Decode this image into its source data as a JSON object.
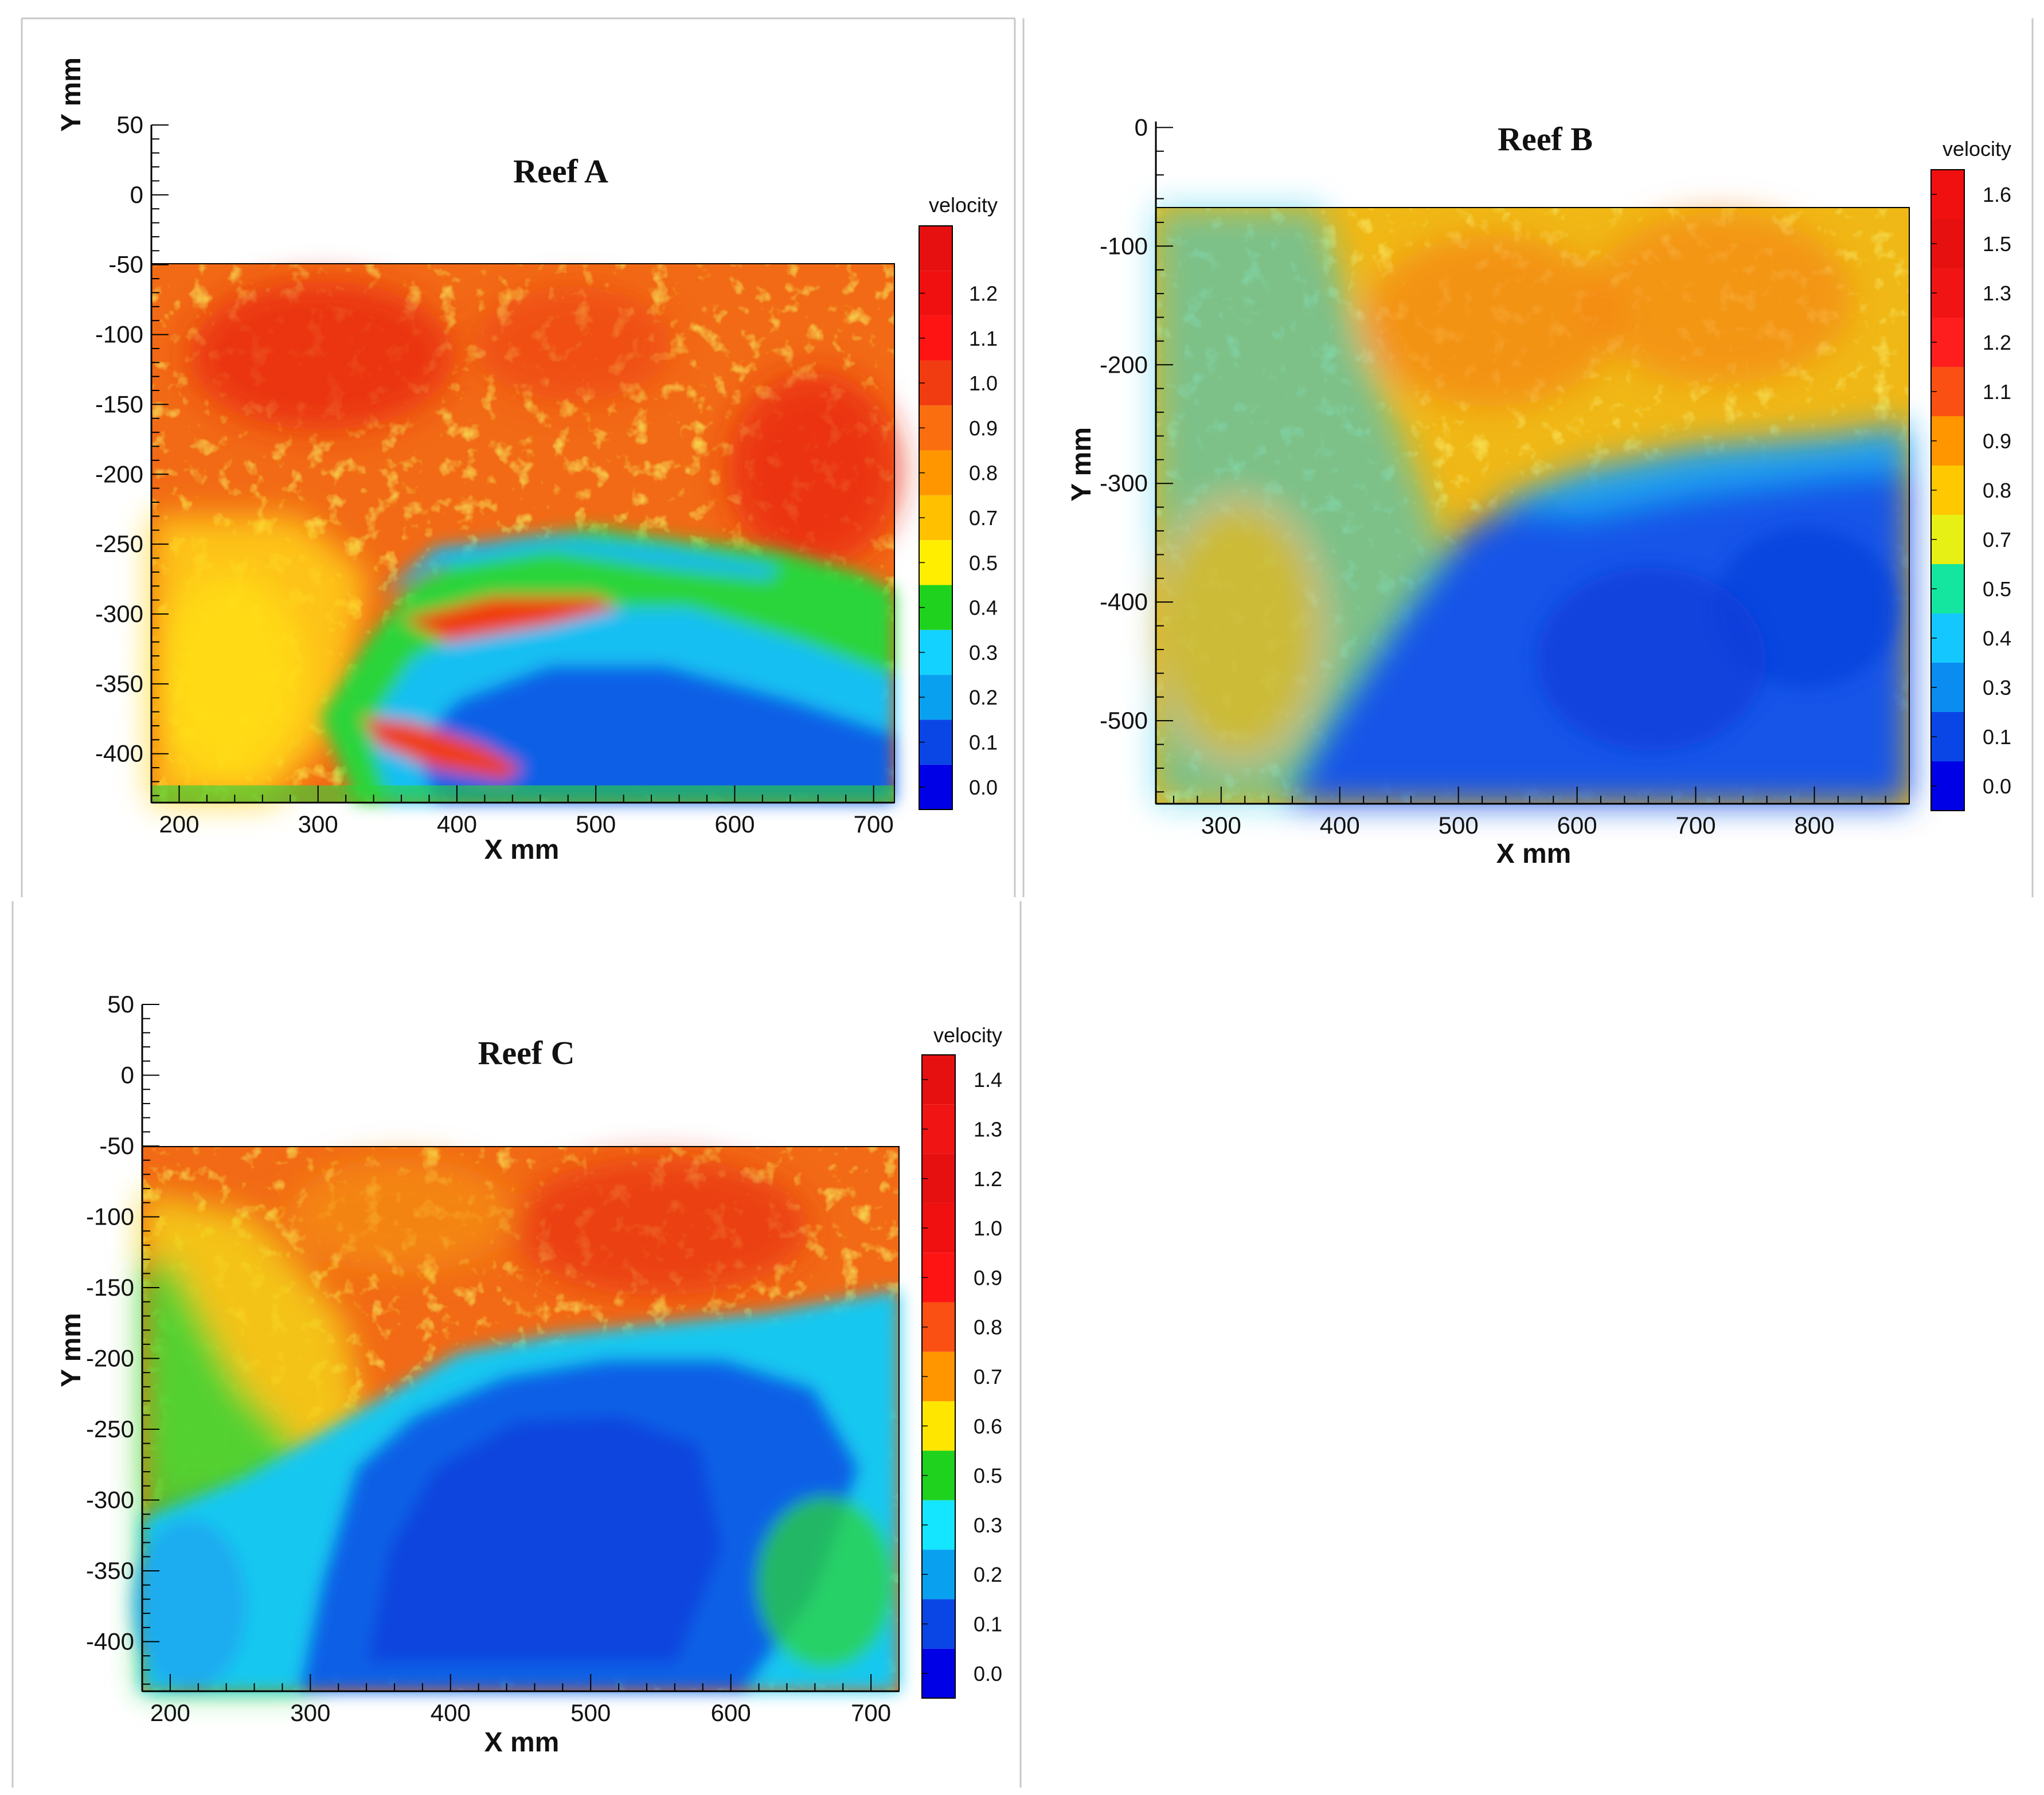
{
  "chart_data": [
    {
      "type": "heatmap",
      "title": "Reef A",
      "xlabel": "X mm",
      "ylabel": "Y mm",
      "x_range": [
        180,
        715
      ],
      "y_range": [
        -435,
        50
      ],
      "data_window": {
        "x": [
          180,
          715
        ],
        "y": [
          -435,
          -50
        ]
      },
      "x_ticks": [
        200,
        300,
        400,
        500,
        600,
        700
      ],
      "y_ticks": [
        50,
        0,
        -50,
        -100,
        -150,
        -200,
        -250,
        -300,
        -350,
        -400
      ],
      "colorbar": {
        "title": "velocity",
        "labels": [
          "0.0",
          "0.1",
          "0.2",
          "0.3",
          "0.4",
          "0.5",
          "0.7",
          "0.8",
          "0.9",
          "1.0",
          "1.1",
          "1.2"
        ],
        "colors": [
          "#0000e6",
          "#0a46e6",
          "#0aa0f0",
          "#14d2ff",
          "#1ed21e",
          "#ffee00",
          "#ffc000",
          "#ff9600",
          "#fa6e10",
          "#f03c10",
          "#ff1414",
          "#f01010",
          "#e61010"
        ]
      }
    },
    {
      "type": "heatmap",
      "title": "Reef B",
      "xlabel": "X mm",
      "ylabel": "Y mm",
      "x_range": [
        245,
        880
      ],
      "y_range": [
        -570,
        5
      ],
      "data_window": {
        "x": [
          245,
          880
        ],
        "y": [
          -570,
          -65
        ]
      },
      "x_ticks": [
        300,
        400,
        500,
        600,
        700,
        800
      ],
      "y_ticks": [
        0,
        -100,
        -200,
        -300,
        -400,
        -500
      ],
      "colorbar": {
        "title": "velocity",
        "labels": [
          "0.0",
          "0.1",
          "0.3",
          "0.4",
          "0.5",
          "0.7",
          "0.8",
          "0.9",
          "1.1",
          "1.2",
          "1.3",
          "1.5",
          "1.6"
        ],
        "colors": [
          "#0000e6",
          "#0a46e6",
          "#0a8cf0",
          "#14c8ff",
          "#14e6a0",
          "#e6f014",
          "#ffc800",
          "#ff9600",
          "#fa5014",
          "#ff1e1e",
          "#f01414",
          "#e61010",
          "#f01010"
        ]
      }
    },
    {
      "type": "heatmap",
      "title": "Reef C",
      "xlabel": "X mm",
      "ylabel": "Y mm",
      "x_range": [
        180,
        720
      ],
      "y_range": [
        -435,
        50
      ],
      "data_window": {
        "x": [
          180,
          720
        ],
        "y": [
          -435,
          -50
        ]
      },
      "x_ticks": [
        200,
        300,
        400,
        500,
        600,
        700
      ],
      "y_ticks": [
        50,
        0,
        -50,
        -100,
        -150,
        -200,
        -250,
        -300,
        -350,
        -400
      ],
      "colorbar": {
        "title": "velocity",
        "labels": [
          "0.0",
          "0.1",
          "0.2",
          "0.3",
          "0.5",
          "0.6",
          "0.7",
          "0.8",
          "0.9",
          "1.0",
          "1.2",
          "1.3",
          "1.4"
        ],
        "colors": [
          "#0000e6",
          "#0a46e6",
          "#0aa0f0",
          "#14e6ff",
          "#1ed21e",
          "#ffe600",
          "#ff9600",
          "#fa5014",
          "#ff1414",
          "#f01010",
          "#e61010",
          "#f01414",
          "#e61010"
        ]
      }
    }
  ]
}
